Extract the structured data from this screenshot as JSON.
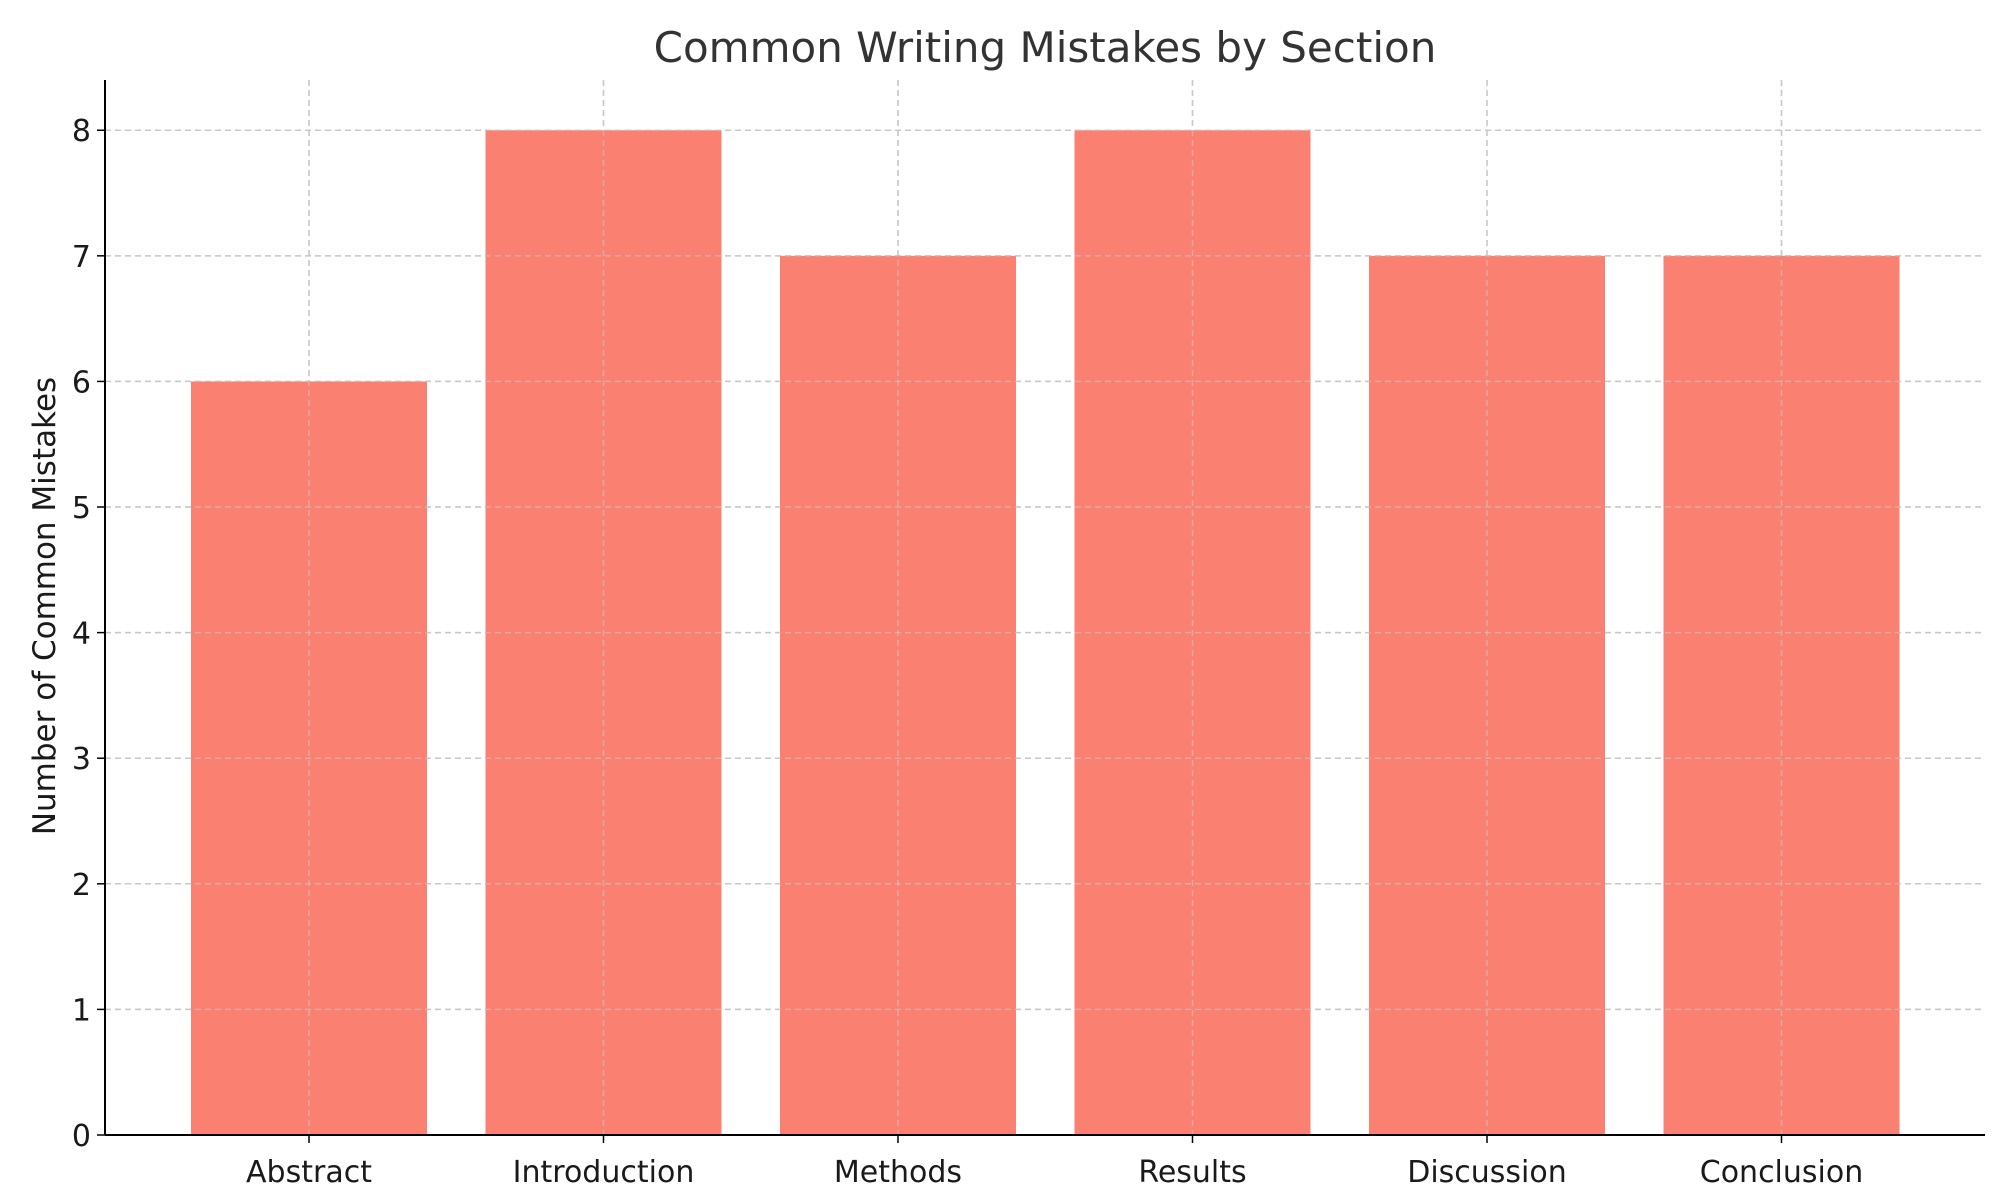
{
  "chart_data": {
    "type": "bar",
    "title": "Common Writing Mistakes by Section",
    "xlabel": "",
    "ylabel": "Number of Common Mistakes",
    "categories": [
      "Abstract",
      "Introduction",
      "Methods",
      "Results",
      "Discussion",
      "Conclusion"
    ],
    "values": [
      6,
      8,
      7,
      8,
      7,
      7
    ],
    "ylim": [
      0,
      8.4
    ],
    "yticks": [
      0,
      1,
      2,
      3,
      4,
      5,
      6,
      7,
      8
    ],
    "grid": true,
    "bar_color": "#fa8072",
    "grid_color": "#c8c8c8"
  }
}
